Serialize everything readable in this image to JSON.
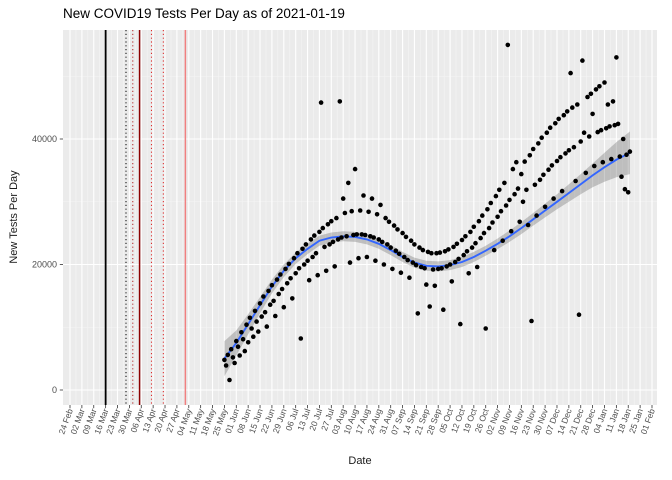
{
  "figure": {
    "title": "New COVID19 Tests Per Day as of 2021-01-19",
    "xlabel": "Date",
    "ylabel": "New Tests Per Day"
  },
  "chart_data": {
    "type": "scatter",
    "title": "New COVID19 Tests Per Day as of 2021-01-19",
    "xlabel": "Date",
    "ylabel": "New Tests Per Day",
    "x_axis": {
      "unit": "days since first tick (24 Feb), weekly ticks",
      "tick_interval_days": 7,
      "domain_days": [
        0,
        343
      ],
      "tick_labels": [
        "24 Feb",
        "02 Mar",
        "09 Mar",
        "16 Mar",
        "23 Mar",
        "30 Mar",
        "06 Apr",
        "13 Apr",
        "20 Apr",
        "27 Apr",
        "04 May",
        "11 May",
        "18 May",
        "25 May",
        "01 Jun",
        "08 Jun",
        "15 Jun",
        "22 Jun",
        "29 Jun",
        "06 Jul",
        "13 Jul",
        "20 Jul",
        "27 Jul",
        "03 Aug",
        "10 Aug",
        "17 Aug",
        "24 Aug",
        "31 Aug",
        "07 Sep",
        "14 Sep",
        "21 Sep",
        "28 Sep",
        "05 Oct",
        "12 Oct",
        "19 Oct",
        "26 Oct",
        "02 Nov",
        "09 Nov",
        "16 Nov",
        "23 Nov",
        "30 Nov",
        "07 Dec",
        "14 Dec",
        "21 Dec",
        "28 Dec",
        "04 Jan",
        "11 Jan",
        "18 Jan",
        "25 Jan",
        "01 Feb"
      ]
    },
    "y_axis": {
      "major_ticks": [
        0,
        20000,
        40000
      ],
      "minor_ticks": [
        10000,
        30000,
        50000
      ],
      "tick_labels": [
        "0",
        "20000",
        "40000"
      ],
      "lim": [
        -2400,
        57400
      ]
    },
    "points": [
      [
        91,
        4800
      ],
      [
        92,
        3900
      ],
      [
        93,
        5600
      ],
      [
        94,
        1600
      ],
      [
        95,
        6500
      ],
      [
        96,
        5200
      ],
      [
        97,
        4300
      ],
      [
        98,
        7800
      ],
      [
        99,
        6900
      ],
      [
        100,
        5500
      ],
      [
        101,
        9200
      ],
      [
        102,
        8100
      ],
      [
        103,
        6200
      ],
      [
        104,
        10400
      ],
      [
        105,
        7600
      ],
      [
        106,
        11500
      ],
      [
        107,
        9800
      ],
      [
        108,
        8500
      ],
      [
        109,
        12600
      ],
      [
        110,
        10900
      ],
      [
        111,
        9300
      ],
      [
        112,
        13800
      ],
      [
        113,
        11700
      ],
      [
        114,
        14900
      ],
      [
        115,
        12400
      ],
      [
        116,
        10100
      ],
      [
        117,
        15800
      ],
      [
        118,
        13600
      ],
      [
        119,
        16700
      ],
      [
        120,
        14200
      ],
      [
        121,
        11800
      ],
      [
        122,
        17600
      ],
      [
        123,
        15300
      ],
      [
        124,
        18400
      ],
      [
        125,
        16100
      ],
      [
        126,
        13200
      ],
      [
        127,
        19300
      ],
      [
        128,
        17000
      ],
      [
        129,
        20100
      ],
      [
        130,
        17800
      ],
      [
        131,
        14600
      ],
      [
        132,
        21000
      ],
      [
        133,
        18600
      ],
      [
        134,
        21800
      ],
      [
        135,
        19400
      ],
      [
        136,
        8200
      ],
      [
        137,
        22500
      ],
      [
        138,
        20000
      ],
      [
        139,
        23200
      ],
      [
        140,
        20600
      ],
      [
        141,
        17500
      ],
      [
        142,
        24000
      ],
      [
        143,
        21200
      ],
      [
        144,
        24600
      ],
      [
        145,
        21800
      ],
      [
        146,
        18300
      ],
      [
        147,
        25200
      ],
      [
        148,
        45800
      ],
      [
        149,
        25800
      ],
      [
        150,
        22800
      ],
      [
        151,
        19000
      ],
      [
        152,
        26400
      ],
      [
        153,
        23200
      ],
      [
        154,
        26900
      ],
      [
        155,
        23600
      ],
      [
        156,
        19700
      ],
      [
        157,
        27400
      ],
      [
        158,
        24000
      ],
      [
        159,
        46000
      ],
      [
        160,
        24300
      ],
      [
        161,
        30500
      ],
      [
        162,
        28200
      ],
      [
        163,
        24500
      ],
      [
        164,
        33000
      ],
      [
        165,
        20300
      ],
      [
        166,
        28500
      ],
      [
        167,
        24700
      ],
      [
        168,
        35200
      ],
      [
        169,
        24800
      ],
      [
        170,
        21000
      ],
      [
        171,
        28600
      ],
      [
        172,
        24800
      ],
      [
        173,
        31000
      ],
      [
        174,
        24700
      ],
      [
        175,
        21200
      ],
      [
        176,
        28400
      ],
      [
        177,
        24500
      ],
      [
        178,
        30500
      ],
      [
        179,
        24300
      ],
      [
        180,
        20600
      ],
      [
        181,
        28000
      ],
      [
        182,
        24000
      ],
      [
        183,
        29500
      ],
      [
        184,
        23600
      ],
      [
        185,
        20000
      ],
      [
        186,
        27400
      ],
      [
        187,
        23200
      ],
      [
        188,
        26800
      ],
      [
        189,
        22700
      ],
      [
        190,
        19300
      ],
      [
        191,
        26200
      ],
      [
        192,
        22200
      ],
      [
        193,
        25600
      ],
      [
        194,
        21700
      ],
      [
        195,
        18700
      ],
      [
        196,
        25000
      ],
      [
        197,
        21200
      ],
      [
        198,
        24400
      ],
      [
        199,
        20700
      ],
      [
        200,
        17900
      ],
      [
        201,
        23800
      ],
      [
        202,
        20300
      ],
      [
        203,
        23200
      ],
      [
        204,
        19900
      ],
      [
        205,
        12200
      ],
      [
        206,
        22700
      ],
      [
        207,
        19600
      ],
      [
        208,
        22300
      ],
      [
        209,
        19400
      ],
      [
        210,
        16800
      ],
      [
        211,
        22000
      ],
      [
        212,
        13300
      ],
      [
        213,
        21800
      ],
      [
        214,
        19200
      ],
      [
        215,
        16600
      ],
      [
        216,
        21800
      ],
      [
        217,
        19300
      ],
      [
        218,
        21900
      ],
      [
        219,
        19400
      ],
      [
        220,
        12800
      ],
      [
        221,
        22100
      ],
      [
        222,
        19700
      ],
      [
        223,
        22400
      ],
      [
        224,
        20000
      ],
      [
        225,
        17300
      ],
      [
        226,
        22800
      ],
      [
        227,
        20400
      ],
      [
        228,
        23300
      ],
      [
        229,
        20900
      ],
      [
        230,
        10500
      ],
      [
        231,
        23900
      ],
      [
        232,
        21500
      ],
      [
        233,
        24500
      ],
      [
        234,
        22100
      ],
      [
        235,
        18600
      ],
      [
        236,
        25200
      ],
      [
        237,
        22700
      ],
      [
        238,
        26000
      ],
      [
        239,
        23400
      ],
      [
        240,
        19600
      ],
      [
        241,
        26900
      ],
      [
        242,
        24200
      ],
      [
        243,
        27800
      ],
      [
        244,
        25000
      ],
      [
        245,
        9800
      ],
      [
        246,
        28800
      ],
      [
        247,
        25800
      ],
      [
        248,
        29800
      ],
      [
        249,
        26700
      ],
      [
        250,
        22300
      ],
      [
        251,
        30900
      ],
      [
        252,
        27600
      ],
      [
        253,
        31900
      ],
      [
        254,
        28500
      ],
      [
        255,
        23800
      ],
      [
        256,
        33000
      ],
      [
        257,
        29400
      ],
      [
        258,
        55000
      ],
      [
        259,
        30300
      ],
      [
        260,
        25300
      ],
      [
        261,
        35200
      ],
      [
        262,
        31200
      ],
      [
        263,
        36300
      ],
      [
        264,
        32100
      ],
      [
        265,
        26800
      ],
      [
        266,
        34400
      ],
      [
        267,
        30000
      ],
      [
        268,
        36400
      ],
      [
        269,
        31900
      ],
      [
        270,
        26300
      ],
      [
        271,
        37400
      ],
      [
        272,
        11000
      ],
      [
        273,
        38400
      ],
      [
        274,
        32700
      ],
      [
        275,
        27800
      ],
      [
        276,
        39300
      ],
      [
        277,
        33500
      ],
      [
        278,
        40200
      ],
      [
        279,
        34300
      ],
      [
        280,
        29200
      ],
      [
        281,
        41000
      ],
      [
        282,
        35100
      ],
      [
        283,
        41800
      ],
      [
        284,
        35800
      ],
      [
        285,
        30500
      ],
      [
        286,
        42500
      ],
      [
        287,
        36500
      ],
      [
        288,
        43200
      ],
      [
        289,
        37100
      ],
      [
        290,
        31700
      ],
      [
        291,
        43800
      ],
      [
        292,
        37700
      ],
      [
        293,
        44400
      ],
      [
        294,
        38200
      ],
      [
        295,
        50500
      ],
      [
        296,
        45000
      ],
      [
        297,
        38700
      ],
      [
        298,
        33300
      ],
      [
        299,
        45500
      ],
      [
        300,
        12000
      ],
      [
        301,
        39600
      ],
      [
        302,
        52500
      ],
      [
        303,
        41000
      ],
      [
        304,
        34600
      ],
      [
        305,
        46700
      ],
      [
        306,
        40400
      ],
      [
        307,
        47200
      ],
      [
        308,
        44000
      ],
      [
        309,
        35700
      ],
      [
        310,
        47900
      ],
      [
        311,
        41100
      ],
      [
        312,
        48400
      ],
      [
        313,
        41400
      ],
      [
        314,
        36300
      ],
      [
        315,
        49000
      ],
      [
        316,
        41700
      ],
      [
        317,
        45500
      ],
      [
        318,
        42000
      ],
      [
        319,
        36800
      ],
      [
        320,
        46000
      ],
      [
        321,
        42200
      ],
      [
        322,
        53000
      ],
      [
        323,
        42400
      ],
      [
        324,
        37200
      ],
      [
        325,
        34000
      ],
      [
        326,
        40000
      ],
      [
        327,
        32000
      ],
      [
        328,
        37500
      ],
      [
        329,
        31500
      ],
      [
        330,
        38000
      ]
    ],
    "smooth": {
      "label": "loess fit with confidence ribbon",
      "color": "#3366FF",
      "ribbon_color": "rgba(96,96,96,0.32)",
      "points_day_fit_halfwidth": [
        [
          91,
          5000,
          2800
        ],
        [
          98,
          7500,
          2000
        ],
        [
          105,
          10500,
          1600
        ],
        [
          112,
          13500,
          1300
        ],
        [
          119,
          16500,
          1100
        ],
        [
          126,
          19000,
          1000
        ],
        [
          133,
          21000,
          900
        ],
        [
          140,
          22500,
          850
        ],
        [
          147,
          23800,
          800
        ],
        [
          154,
          24300,
          800
        ],
        [
          161,
          24500,
          800
        ],
        [
          168,
          24400,
          800
        ],
        [
          175,
          24000,
          800
        ],
        [
          182,
          23300,
          800
        ],
        [
          189,
          22300,
          800
        ],
        [
          196,
          21200,
          800
        ],
        [
          203,
          20300,
          800
        ],
        [
          210,
          19800,
          800
        ],
        [
          217,
          19700,
          800
        ],
        [
          224,
          19900,
          800
        ],
        [
          231,
          20400,
          800
        ],
        [
          238,
          21200,
          800
        ],
        [
          245,
          22200,
          800
        ],
        [
          252,
          23300,
          850
        ],
        [
          259,
          24500,
          900
        ],
        [
          266,
          25800,
          950
        ],
        [
          273,
          27200,
          1000
        ],
        [
          280,
          28600,
          1100
        ],
        [
          287,
          30000,
          1200
        ],
        [
          294,
          31400,
          1400
        ],
        [
          301,
          32800,
          1600
        ],
        [
          308,
          34200,
          1900
        ],
        [
          315,
          35500,
          2300
        ],
        [
          322,
          36700,
          2800
        ],
        [
          330,
          37800,
          3400
        ]
      ]
    },
    "vlines": [
      {
        "day": 21,
        "color": "#000000",
        "dash": "solid",
        "width": 1.8
      },
      {
        "day": 33,
        "color": "#000000",
        "dash": "dotted",
        "width": 1
      },
      {
        "day": 37,
        "color": "#B22222",
        "dash": "dotted",
        "width": 1
      },
      {
        "day": 41,
        "color": "#8B0000",
        "dash": "solid",
        "width": 1.5
      },
      {
        "day": 48,
        "color": "#DD2222",
        "dash": "dotted",
        "width": 1
      },
      {
        "day": 55,
        "color": "#DD2222",
        "dash": "dotted",
        "width": 1
      },
      {
        "day": 68,
        "color": "#F08080",
        "dash": "solid",
        "width": 1.5
      }
    ],
    "style": {
      "panel_bg": "#EBEBEB",
      "grid_major": "#FFFFFF",
      "grid_minor": "#F5F5F5",
      "point_color": "#000000",
      "axis_text_color": "#4D4D4D",
      "tick_color": "#333333"
    }
  }
}
